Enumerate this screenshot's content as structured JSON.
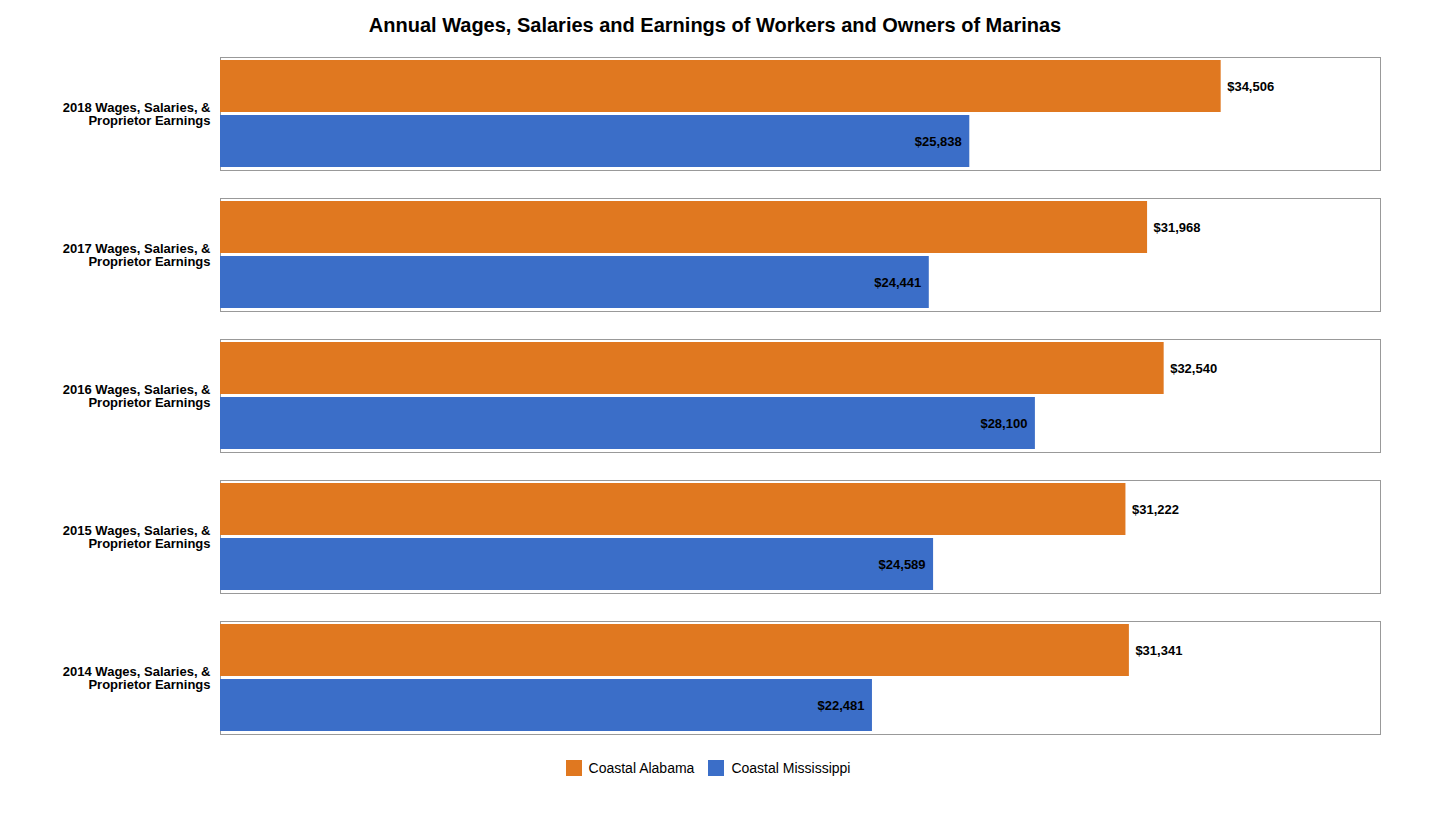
{
  "chart_data": {
    "type": "bar",
    "orientation": "horizontal",
    "title": "Annual Wages, Salaries and Earnings of Workers and Owners of Marinas",
    "categories": [
      "2018 Wages, Salaries, &\nProprietor Earnings",
      "2017 Wages, Salaries, &\nProprietor Earnings",
      "2016 Wages, Salaries, &\nProprietor Earnings",
      "2015 Wages, Salaries, &\nProprietor Earnings",
      "2014 Wages, Salaries, &\nProprietor Earnings"
    ],
    "series": [
      {
        "name": "Coastal Alabama",
        "color": "#E07820",
        "values": [
          34506,
          31968,
          32540,
          31222,
          31341
        ],
        "value_labels": [
          "$34,506",
          "$31,968",
          "$32,540",
          "$31,222",
          "$31,341"
        ]
      },
      {
        "name": "Coastal Mississippi",
        "color": "#3B6EC8",
        "values": [
          25838,
          24441,
          28100,
          24589,
          22481
        ],
        "value_labels": [
          "$25,838",
          "$24,441",
          "$28,100",
          "$24,589",
          "$22,481"
        ]
      }
    ],
    "xlim": [
      0,
      40000
    ],
    "tick_labels": "y",
    "data_labels": true,
    "legend": "bottom",
    "grid": false
  }
}
